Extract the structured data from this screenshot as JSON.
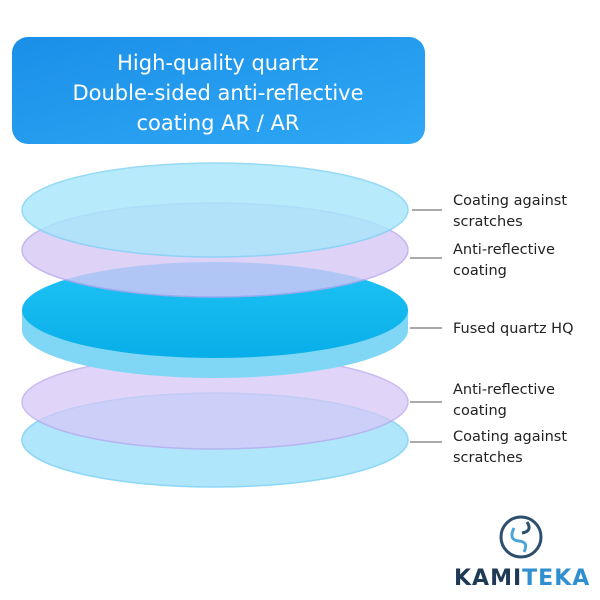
{
  "header": {
    "title": [
      "High-quality quartz",
      "Double-sided anti-reflective",
      "coating AR / AR"
    ]
  },
  "layers": [
    {
      "label": [
        "Coating against",
        "scratches"
      ]
    },
    {
      "label": [
        "Anti-reflective",
        "coating"
      ]
    },
    {
      "label": [
        "Fused quartz HQ"
      ]
    },
    {
      "label": [
        "Anti-reflective",
        "coating"
      ]
    },
    {
      "label": [
        "Coating against",
        "scratches"
      ]
    }
  ],
  "brand": {
    "parts": [
      "KAMI",
      "TEKA"
    ]
  }
}
